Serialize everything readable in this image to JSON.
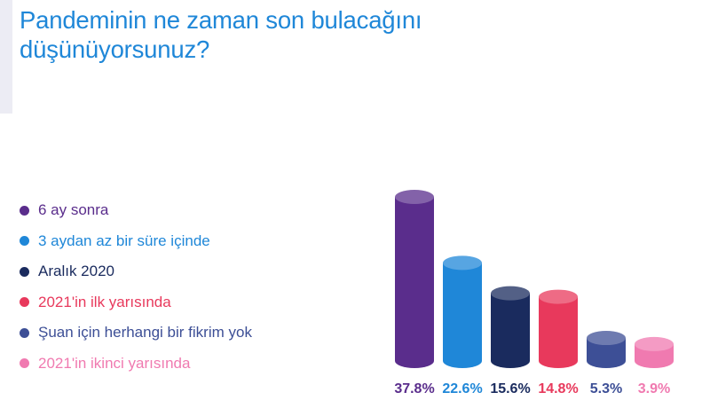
{
  "title": "Pandeminin ne zaman son bulacağını düşünüyorsunuz?",
  "chart_data": {
    "type": "bar",
    "title": "Pandeminin ne zaman son bulacağını düşünüyorsunuz?",
    "categories": [
      "6 ay sonra",
      "3 aydan az bir süre içinde",
      "Aralık 2020",
      "2021'in ilk yarısında",
      "Şuan için herhangi bir fikrim yok",
      "2021'in ikinci yarısında"
    ],
    "values": [
      37.8,
      22.6,
      15.6,
      14.8,
      5.3,
      3.9
    ],
    "value_labels": [
      "37.8%",
      "22.6%",
      "15.6%",
      "14.8%",
      "5.3%",
      "3.9%"
    ],
    "colors": [
      "#5a2d8c",
      "#1f87d8",
      "#1a2b5e",
      "#e8395c",
      "#3d4f96",
      "#f07ab0"
    ],
    "legend_position": "left",
    "bar_style": "cylinder",
    "grid": false
  }
}
